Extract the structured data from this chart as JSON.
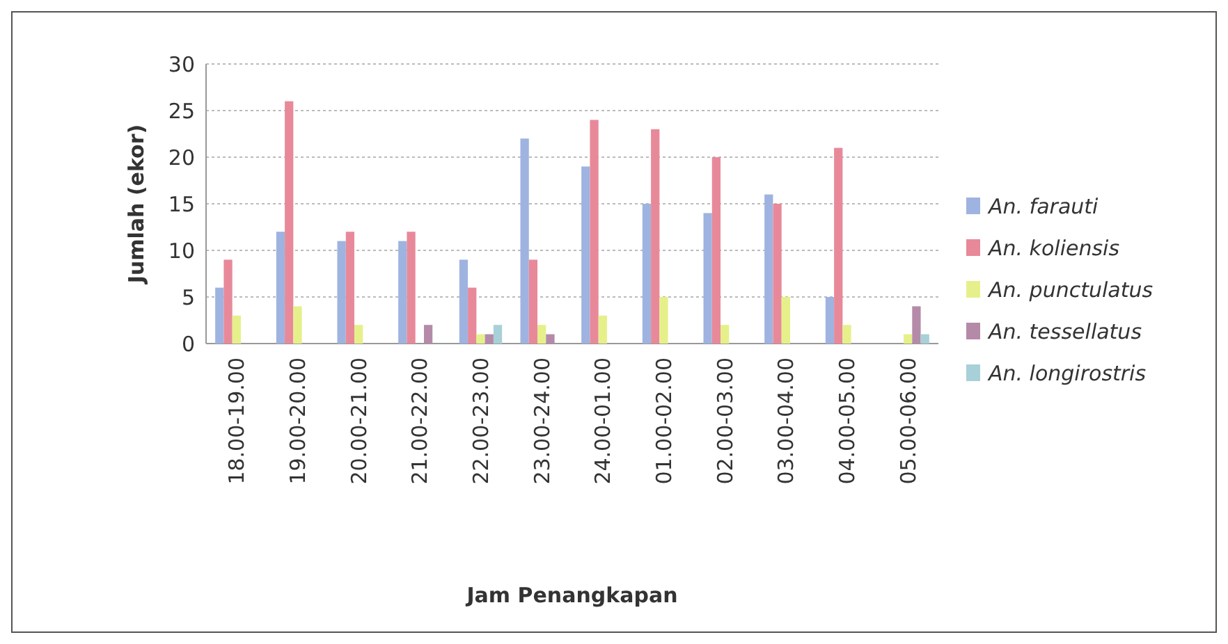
{
  "chart_data": {
    "type": "bar",
    "xlabel": "Jam Penangkapan",
    "ylabel": "Jumlah (ekor)",
    "categories": [
      "18.00-19.00",
      "19.00-20.00",
      "20.00-21.00",
      "21.00-22.00",
      "22.00-23.00",
      "23.00-24.00",
      "24.00-01.00",
      "01.00-02.00",
      "02.00-03.00",
      "03.00-04.00",
      "04.00-05.00",
      "05.00-06.00"
    ],
    "series": [
      {
        "name": "An. farauti",
        "color": "#9fb3e0",
        "values": [
          6,
          12,
          11,
          11,
          9,
          22,
          19,
          15,
          14,
          16,
          5,
          0
        ]
      },
      {
        "name": "An. koliensis",
        "color": "#e8899a",
        "values": [
          9,
          26,
          12,
          12,
          6,
          9,
          24,
          23,
          20,
          15,
          21,
          0
        ]
      },
      {
        "name": "An. punctulatus",
        "color": "#e6f08a",
        "values": [
          3,
          4,
          2,
          0,
          1,
          2,
          3,
          5,
          2,
          5,
          2,
          1
        ]
      },
      {
        "name": "An. tessellatus",
        "color": "#b58aa8",
        "values": [
          0,
          0,
          0,
          2,
          1,
          1,
          0,
          0,
          0,
          0,
          0,
          4
        ]
      },
      {
        "name": "An. longirostris",
        "color": "#a8d0d8",
        "values": [
          0,
          0,
          0,
          0,
          2,
          0,
          0,
          0,
          0,
          0,
          0,
          1
        ]
      }
    ],
    "ylim": [
      0,
      30
    ],
    "yticks": [
      0,
      5,
      10,
      15,
      20,
      25,
      30
    ],
    "grid": "y",
    "legend": "right"
  }
}
